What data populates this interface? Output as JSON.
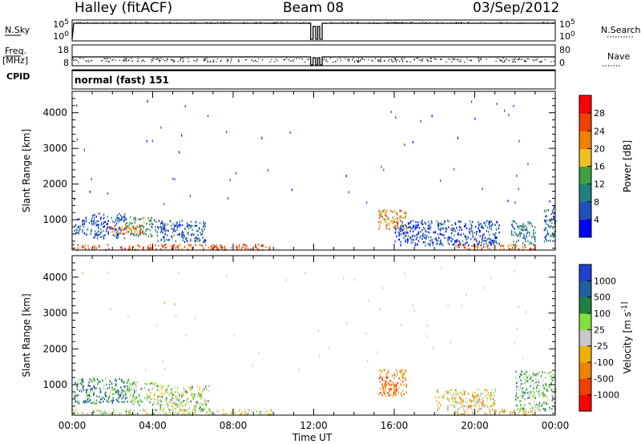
{
  "header": {
    "station": "Halley (fitACF)",
    "beam": "Beam 08",
    "date": "03/Sep/2012"
  },
  "strips": {
    "nsky": {
      "label": "N.Sky",
      "ticks": [
        "10^5",
        "10^0"
      ],
      "right_label": "N.Search",
      "right_ticks": [
        "10^5",
        "10^0"
      ],
      "right_style": "dotted"
    },
    "freq": {
      "label_top": "Freq.",
      "label_bottom": "[MHz]",
      "ticks": [
        "18",
        "8"
      ],
      "right_label": "Nave",
      "right_ticks": [
        "80",
        "0"
      ],
      "right_style": "dotted"
    },
    "cpid": {
      "label": "CPID",
      "text": "normal (fast) 151"
    }
  },
  "x_axis": {
    "label": "Time UT",
    "ticks": [
      "00:00",
      "04:00",
      "08:00",
      "12:00",
      "16:00",
      "20:00",
      "00:00"
    ],
    "range_hours": [
      0,
      24
    ]
  },
  "colors": {
    "power": [
      "#0000ff",
      "#2050c0",
      "#208080",
      "#40a040",
      "#f0c020",
      "#f08000",
      "#f04000",
      "#ff0000"
    ],
    "velocity": [
      "#ff0000",
      "#f04000",
      "#f08000",
      "#f0b000",
      "#c8c8c8",
      "#80e040",
      "#208040",
      "#2060a0",
      "#2040d0"
    ]
  },
  "chart_data": [
    {
      "type": "heatmap",
      "ylabel": "Slant Range [km]",
      "yticks": [
        "1000",
        "2000",
        "3000",
        "4000"
      ],
      "ylim": [
        150,
        4600
      ],
      "colorbar": {
        "label": "Power [dB]",
        "ticks": [
          "4",
          "8",
          "12",
          "16",
          "20",
          "24",
          "28"
        ],
        "range": [
          0,
          32
        ]
      },
      "regions": [
        {
          "t": [
            0.1,
            1.0
          ],
          "r": [
            600,
            1100
          ],
          "value": 8
        },
        {
          "t": [
            1.0,
            2.6
          ],
          "r": [
            500,
            1200
          ],
          "value": 6
        },
        {
          "t": [
            2.6,
            4.2
          ],
          "r": [
            550,
            1100
          ],
          "value": 12
        },
        {
          "t": [
            4.2,
            6.6
          ],
          "r": [
            400,
            1000
          ],
          "value": 7
        },
        {
          "t": [
            1.8,
            3.5
          ],
          "r": [
            600,
            850
          ],
          "value": 22
        },
        {
          "t": [
            15.2,
            16.6
          ],
          "r": [
            700,
            1300
          ],
          "value": 20
        },
        {
          "t": [
            21.8,
            23.0
          ],
          "r": [
            300,
            1000
          ],
          "value": 10
        },
        {
          "t": [
            23.4,
            24.0
          ],
          "r": [
            400,
            1400
          ],
          "value": 8
        },
        {
          "t": [
            16.0,
            21.2
          ],
          "r": [
            300,
            1000
          ],
          "value": 6
        },
        {
          "t": [
            0.0,
            9.8
          ],
          "r": [
            180,
            330
          ],
          "value": 26
        },
        {
          "t": [
            19.0,
            23.0
          ],
          "r": [
            180,
            330
          ],
          "value": 24
        }
      ]
    },
    {
      "type": "heatmap",
      "ylabel": "Slant Range [km]",
      "yticks": [
        "1000",
        "2000",
        "3000",
        "4000"
      ],
      "ylim": [
        150,
        4600
      ],
      "colorbar": {
        "label": "Velocity [m s^-1]",
        "ticks": [
          "1000",
          "500",
          "100",
          "25",
          "-25",
          "-100",
          "-500",
          "-1000"
        ],
        "range": [
          -1200,
          1200
        ]
      },
      "regions": [
        {
          "t": [
            0.1,
            2.8
          ],
          "r": [
            500,
            1200
          ],
          "value": 600
        },
        {
          "t": [
            2.8,
            4.3
          ],
          "r": [
            450,
            1100
          ],
          "value": 200
        },
        {
          "t": [
            4.3,
            6.8
          ],
          "r": [
            300,
            1000
          ],
          "value": 150
        },
        {
          "t": [
            15.2,
            16.6
          ],
          "r": [
            700,
            1450
          ],
          "value": -600
        },
        {
          "t": [
            18.0,
            21.0
          ],
          "r": [
            300,
            900
          ],
          "value": -150
        },
        {
          "t": [
            22.0,
            24.0
          ],
          "r": [
            300,
            1400
          ],
          "value": 300
        },
        {
          "t": [
            0.0,
            6.0
          ],
          "r": [
            180,
            330
          ],
          "value": 50
        },
        {
          "t": [
            6.0,
            10.0
          ],
          "r": [
            180,
            330
          ],
          "value": 0
        },
        {
          "t": [
            19.0,
            23.0
          ],
          "r": [
            180,
            330
          ],
          "value": -150
        }
      ]
    }
  ]
}
